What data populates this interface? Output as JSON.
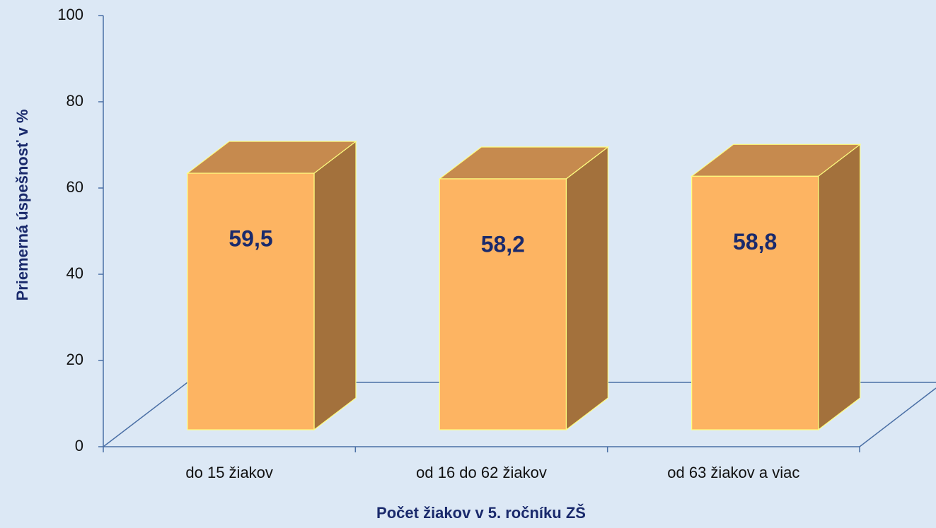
{
  "chart_data": {
    "type": "bar3d",
    "categories": [
      "do 15 žiakov",
      "od 16 do 62 žiakov",
      "od 63 žiakov a viac"
    ],
    "values": [
      59.5,
      58.2,
      58.8
    ],
    "value_labels": [
      "59,5",
      "58,2",
      "58,8"
    ],
    "ylim": [
      0,
      100
    ],
    "yticks": [
      0,
      20,
      40,
      60,
      80,
      100
    ],
    "xlabel": "Počet žiakov v 5. ročníku ZŠ",
    "ylabel": "Priemerná úspešnosť v %",
    "color": "#fdb462"
  }
}
